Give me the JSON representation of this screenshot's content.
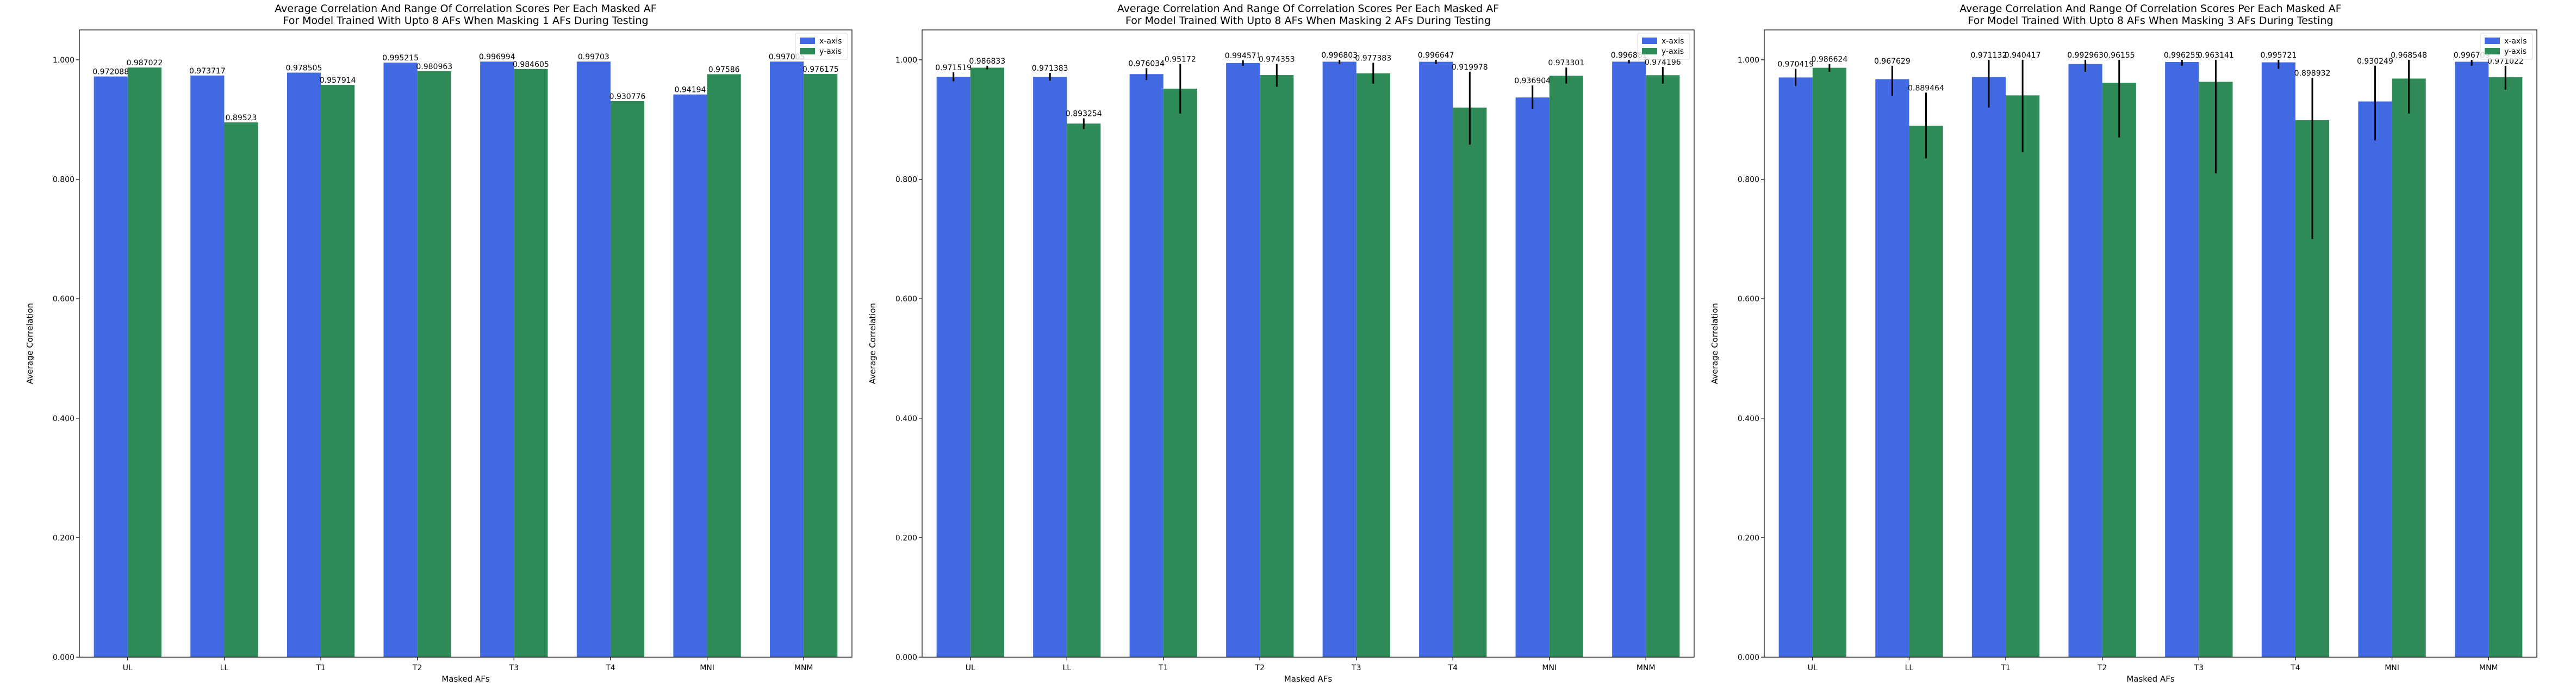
{
  "chart_data": [
    {
      "type": "bar",
      "title": "Average Correlation And Range Of Correlation Scores Per Each Masked AF",
      "subtitle": "For Model Trained With Upto 8 AFs When Masking 1 AFs During Testing",
      "xlabel": "Masked AFs",
      "ylabel": "Average Correlation",
      "ylim": [
        0,
        1.05
      ],
      "yticks": [
        0,
        0.2,
        0.4,
        0.6,
        0.8,
        1.0
      ],
      "ytick_labels": [
        "0.000",
        "0.200",
        "0.400",
        "0.600",
        "0.800",
        "1.000"
      ],
      "categories": [
        "UL",
        "LL",
        "T1",
        "T2",
        "T3",
        "T4",
        "MNI",
        "MNM"
      ],
      "legend_position": "top-right",
      "series": [
        {
          "name": "x-axis",
          "color": "#4169e1",
          "values": [
            0.972088,
            0.973717,
            0.978505,
            0.995215,
            0.996994,
            0.99703,
            0.94194,
            0.997005
          ],
          "labels": [
            "0.972088",
            "0.973717",
            "0.978505",
            "0.995215",
            "0.996994",
            "0.99703",
            "0.94194",
            "0.997005"
          ],
          "err_low": [
            0.972088,
            0.973717,
            0.978505,
            0.995215,
            0.996994,
            0.99703,
            0.94194,
            0.997005
          ],
          "err_high": [
            0.972088,
            0.973717,
            0.978505,
            0.995215,
            0.996994,
            0.99703,
            0.94194,
            0.997005
          ]
        },
        {
          "name": "y-axis",
          "color": "#2e8b57",
          "values": [
            0.987022,
            0.89523,
            0.957914,
            0.980963,
            0.984605,
            0.930776,
            0.97586,
            0.976175
          ],
          "labels": [
            "0.987022",
            "0.89523",
            "0.957914",
            "0.980963",
            "0.984605",
            "0.930776",
            "0.97586",
            "0.976175"
          ],
          "err_low": [
            0.987022,
            0.89523,
            0.957914,
            0.980963,
            0.984605,
            0.930776,
            0.97586,
            0.976175
          ],
          "err_high": [
            0.987022,
            0.89523,
            0.957914,
            0.980963,
            0.984605,
            0.930776,
            0.97586,
            0.976175
          ]
        }
      ]
    },
    {
      "type": "bar",
      "title": "Average Correlation And Range Of Correlation Scores Per Each Masked AF",
      "subtitle": "For Model Trained With Upto 8 AFs When Masking 2 AFs During Testing",
      "xlabel": "Masked AFs",
      "ylabel": "Average Correlation",
      "ylim": [
        0,
        1.05
      ],
      "yticks": [
        0,
        0.2,
        0.4,
        0.6,
        0.8,
        1.0
      ],
      "ytick_labels": [
        "0.000",
        "0.200",
        "0.400",
        "0.600",
        "0.800",
        "1.000"
      ],
      "categories": [
        "UL",
        "LL",
        "T1",
        "T2",
        "T3",
        "T4",
        "MNI",
        "MNM"
      ],
      "legend_position": "top-right",
      "series": [
        {
          "name": "x-axis",
          "color": "#4169e1",
          "values": [
            0.971519,
            0.971383,
            0.976034,
            0.994571,
            0.996803,
            0.996647,
            0.936904,
            0.996881
          ],
          "labels": [
            "0.971519",
            "0.971383",
            "0.976034",
            "0.994571",
            "0.996803",
            "0.996647",
            "0.936904",
            "0.996881"
          ],
          "err_low": [
            0.964,
            0.965,
            0.966,
            0.99,
            0.993,
            0.993,
            0.918,
            0.994
          ],
          "err_high": [
            0.979,
            0.978,
            0.986,
            0.999,
            1.0,
            1.0,
            0.957,
            1.0
          ]
        },
        {
          "name": "y-axis",
          "color": "#2e8b57",
          "values": [
            0.986833,
            0.893254,
            0.95172,
            0.974353,
            0.977383,
            0.919978,
            0.973301,
            0.974196
          ],
          "labels": [
            "0.986833",
            "0.893254",
            "0.95172",
            "0.974353",
            "0.977383",
            "0.919978",
            "0.973301",
            "0.974196"
          ],
          "err_low": [
            0.984,
            0.884,
            0.91,
            0.955,
            0.96,
            0.858,
            0.96,
            0.96
          ],
          "err_high": [
            0.99,
            0.902,
            0.993,
            0.993,
            0.995,
            0.98,
            0.987,
            0.988
          ]
        }
      ]
    },
    {
      "type": "bar",
      "title": "Average Correlation And Range Of Correlation Scores Per Each Masked AF",
      "subtitle": "For Model Trained With Upto 8 AFs When Masking 3 AFs During Testing",
      "xlabel": "Masked AFs",
      "ylabel": "Average Correlation",
      "ylim": [
        0,
        1.05
      ],
      "yticks": [
        0,
        0.2,
        0.4,
        0.6,
        0.8,
        1.0
      ],
      "ytick_labels": [
        "0.000",
        "0.200",
        "0.400",
        "0.600",
        "0.800",
        "1.000"
      ],
      "categories": [
        "UL",
        "LL",
        "T1",
        "T2",
        "T3",
        "T4",
        "MNI",
        "MNM"
      ],
      "legend_position": "top-right",
      "series": [
        {
          "name": "x-axis",
          "color": "#4169e1",
          "values": [
            0.970419,
            0.967629,
            0.971132,
            0.992963,
            0.996255,
            0.995721,
            0.930249,
            0.996709
          ],
          "labels": [
            "0.970419",
            "0.967629",
            "0.971132",
            "0.992963",
            "0.996255",
            "0.995721",
            "0.930249",
            "0.996709"
          ],
          "err_low": [
            0.956,
            0.94,
            0.92,
            0.98,
            0.99,
            0.985,
            0.865,
            0.99
          ],
          "err_high": [
            0.985,
            0.99,
            1.0,
            1.0,
            1.0,
            1.0,
            0.99,
            1.0
          ]
        },
        {
          "name": "y-axis",
          "color": "#2e8b57",
          "values": [
            0.986624,
            0.889464,
            0.940417,
            0.96155,
            0.963141,
            0.898932,
            0.968548,
            0.971022
          ],
          "labels": [
            "0.986624",
            "0.889464",
            "0.940417",
            "0.96155",
            "0.963141",
            "0.898932",
            "0.968548",
            "0.971022"
          ],
          "err_low": [
            0.98,
            0.835,
            0.845,
            0.87,
            0.81,
            0.7,
            0.91,
            0.95
          ],
          "err_high": [
            0.993,
            0.945,
            1.0,
            1.0,
            1.0,
            0.97,
            1.0,
            0.99
          ]
        }
      ]
    }
  ]
}
